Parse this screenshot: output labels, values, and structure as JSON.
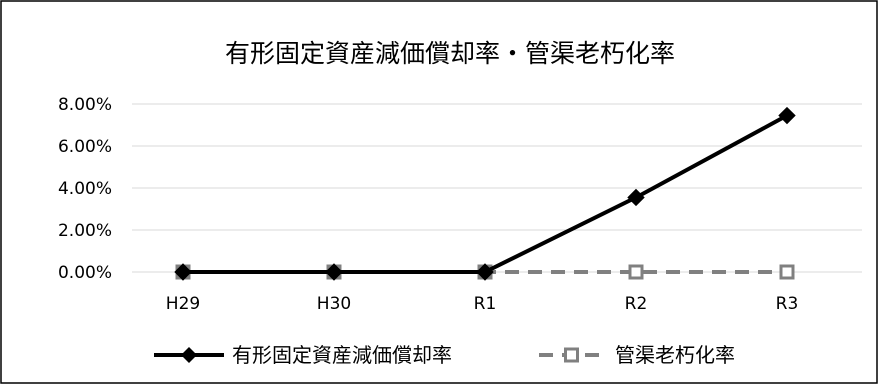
{
  "chart_data": {
    "type": "line",
    "title": "有形固定資産減価償却率・管渠老朽化率",
    "categories": [
      "H29",
      "H30",
      "R1",
      "R2",
      "R3"
    ],
    "series": [
      {
        "name": "有形固定資産減価償却率",
        "values": [
          0.0,
          0.0,
          0.0,
          3.55,
          7.45
        ],
        "color": "#000000",
        "marker": "diamond",
        "line": "solid"
      },
      {
        "name": "管渠老朽化率",
        "values": [
          0.0,
          0.0,
          0.0,
          0.0,
          0.0
        ],
        "color": "#808080",
        "marker": "square-open",
        "line": "dashed"
      }
    ],
    "yticks": [
      "0.00%",
      "2.00%",
      "4.00%",
      "6.00%",
      "8.00%"
    ],
    "ylim": [
      0,
      8
    ],
    "grid": true,
    "legend_position": "bottom"
  }
}
